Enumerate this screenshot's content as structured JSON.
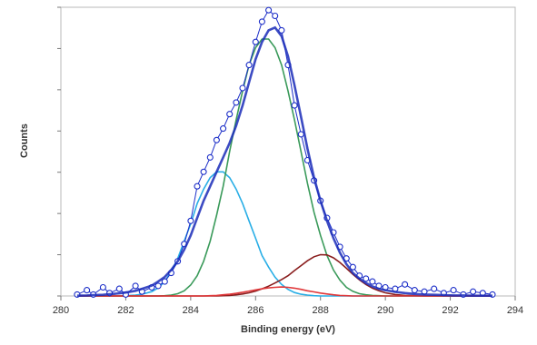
{
  "chart_data": {
    "type": "line",
    "xlabel": "Binding energy (eV)",
    "ylabel": "Counts",
    "xlim": [
      280,
      294
    ],
    "ylim": [
      0,
      100
    ],
    "x_ticks": [
      280,
      282,
      284,
      286,
      288,
      290,
      292,
      294
    ],
    "y_tick_count": 7,
    "y_tick_labels_visible": false,
    "grid": false,
    "legend": "none",
    "x": [
      280.5,
      280.8,
      281.0,
      281.3,
      281.5,
      281.8,
      282.0,
      282.3,
      282.5,
      282.8,
      283.0,
      283.2,
      283.4,
      283.6,
      283.8,
      284.0,
      284.2,
      284.4,
      284.6,
      284.8,
      285.0,
      285.2,
      285.4,
      285.6,
      285.8,
      286.0,
      286.2,
      286.4,
      286.6,
      286.8,
      287.0,
      287.2,
      287.4,
      287.6,
      287.8,
      288.0,
      288.2,
      288.4,
      288.6,
      288.8,
      289.0,
      289.2,
      289.4,
      289.6,
      289.8,
      290.0,
      290.3,
      290.6,
      290.9,
      291.2,
      291.5,
      291.8,
      292.1,
      292.4,
      292.7,
      293.0,
      293.3
    ],
    "series": [
      {
        "role": "measured",
        "color": "#1c2ec8",
        "marker": "open-circle",
        "values": [
          0.5,
          2,
          0.5,
          3,
          1,
          2.5,
          0.5,
          3.5,
          1.5,
          3,
          3.5,
          5,
          8,
          12,
          18,
          26,
          38,
          43,
          48,
          54,
          58,
          63,
          67,
          72,
          80,
          88,
          95,
          99,
          97,
          92,
          80,
          66,
          56,
          47,
          40,
          33,
          27,
          22,
          17,
          13,
          10,
          7,
          6,
          5,
          3.5,
          3,
          2.5,
          4,
          2,
          1.5,
          2.5,
          1,
          2,
          0.5,
          1.5,
          1,
          0.5
        ]
      },
      {
        "role": "envelope",
        "color": "#1a2bb8",
        "values": [
          0.1,
          0.2,
          0.3,
          0.4,
          0.6,
          0.9,
          1.2,
          1.8,
          2.5,
          3.6,
          5,
          6.6,
          9,
          12,
          16,
          21,
          27,
          33,
          38,
          43,
          48,
          53,
          59,
          66,
          74,
          82,
          88,
          92,
          93,
          90,
          83,
          73,
          62,
          51,
          41,
          33,
          26,
          20,
          15,
          11,
          8,
          6,
          4.5,
          3.3,
          2.5,
          2,
          1.4,
          1,
          0.7,
          0.5,
          0.4,
          0.3,
          0.2,
          0.2,
          0.1,
          0.1,
          0.1
        ]
      },
      {
        "role": "component",
        "color": "#29aee6",
        "values": [
          0,
          0,
          0,
          0,
          0,
          0,
          0.1,
          0.3,
          0.6,
          1.5,
          2.8,
          5,
          8.5,
          13,
          19,
          25,
          32,
          37,
          41,
          43,
          43,
          41,
          37,
          32,
          26,
          20,
          14,
          10,
          6.5,
          4,
          2.3,
          1.2,
          0.6,
          0.3,
          0.1,
          0,
          0,
          0,
          0,
          0,
          0,
          0,
          0,
          0,
          0,
          0,
          0,
          0,
          0,
          0,
          0,
          0,
          0,
          0,
          0,
          0,
          0
        ]
      },
      {
        "role": "component",
        "color": "#3a9a5a",
        "values": [
          0,
          0,
          0,
          0,
          0,
          0,
          0,
          0,
          0,
          0,
          0,
          0.1,
          0.3,
          0.8,
          1.8,
          3.8,
          7,
          12,
          19,
          28,
          38,
          50,
          61,
          71,
          80,
          86,
          89,
          89,
          86,
          80,
          71,
          61,
          50,
          39,
          29,
          21,
          14,
          9,
          5.5,
          3,
          1.6,
          0.8,
          0.4,
          0.2,
          0.1,
          0,
          0,
          0,
          0,
          0,
          0,
          0,
          0,
          0,
          0,
          0,
          0
        ]
      },
      {
        "role": "component",
        "color": "#8a1e1e",
        "values": [
          0,
          0,
          0,
          0,
          0,
          0,
          0,
          0,
          0,
          0,
          0,
          0,
          0,
          0,
          0,
          0,
          0,
          0,
          0,
          0,
          0.1,
          0.2,
          0.4,
          0.7,
          1.1,
          1.7,
          2.5,
          3.4,
          4.5,
          5.7,
          7,
          8.8,
          10.5,
          12.2,
          13.6,
          14.3,
          14.2,
          13.2,
          11.6,
          9.6,
          7.5,
          5.6,
          4,
          2.7,
          1.8,
          1.1,
          0.5,
          0.2,
          0.1,
          0,
          0,
          0,
          0,
          0,
          0,
          0,
          0
        ]
      },
      {
        "role": "component",
        "color": "#e0383a",
        "values": [
          0,
          0,
          0,
          0,
          0,
          0,
          0,
          0,
          0,
          0,
          0,
          0,
          0,
          0,
          0,
          0,
          0,
          0,
          0.1,
          0.2,
          0.4,
          0.6,
          0.9,
          1.3,
          1.7,
          2.1,
          2.5,
          2.8,
          3,
          3.1,
          3,
          2.7,
          2.3,
          1.8,
          1.4,
          1,
          0.7,
          0.4,
          0.2,
          0.1,
          0,
          0,
          0,
          0,
          0,
          0,
          0,
          0,
          0,
          0,
          0,
          0,
          0,
          0,
          0,
          0,
          0
        ]
      }
    ]
  }
}
